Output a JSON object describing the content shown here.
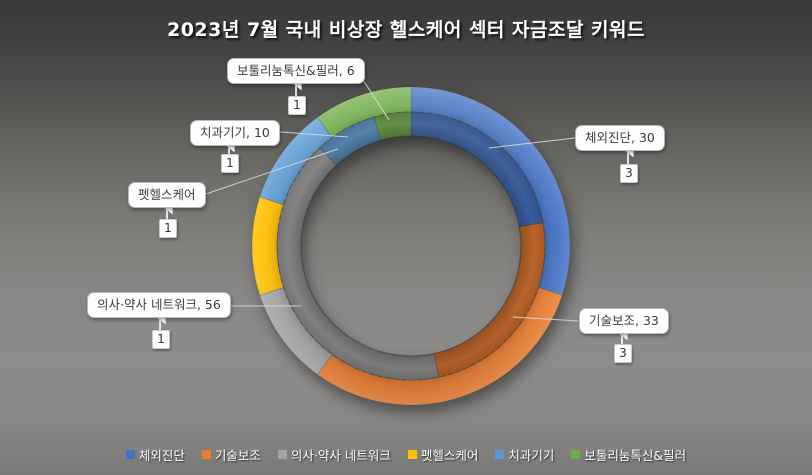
{
  "chart_data": {
    "type": "doughnut",
    "title": "2023년 7월 국내 비상장 헬스케어 섹터 자금조달 키워드",
    "categories": [
      "체외진단",
      "기술보조",
      "의사·약사 네트워크",
      "펫헬스케어",
      "치과기기",
      "보툴리눔톡신&필러"
    ],
    "series": [
      {
        "ring": "inner",
        "values": [
          30,
          33,
          56,
          0,
          10,
          6
        ]
      },
      {
        "ring": "outer",
        "values": [
          3,
          3,
          1,
          1,
          1,
          1
        ]
      }
    ],
    "colors": [
      "#4472C4",
      "#ED7D31",
      "#A5A5A5",
      "#FFC000",
      "#5B9BD5",
      "#70AD47"
    ],
    "callouts": [
      {
        "category": "체외진단",
        "label": "체외진단, 30",
        "count_label": "3"
      },
      {
        "category": "기술보조",
        "label": "기술보조, 33",
        "count_label": "3"
      },
      {
        "category": "의사·약사 네트워크",
        "label": "의사·약사 네트워크, 56",
        "count_label": "1"
      },
      {
        "category": "펫헬스케어",
        "label": "펫헬스케어",
        "count_label": "1"
      },
      {
        "category": "치과기기",
        "label": "치과기기, 10",
        "count_label": "1"
      },
      {
        "category": "보툴리눔톡신&필러",
        "label": "보툴리눔톡신&필러, 6",
        "count_label": "1"
      }
    ],
    "legend": {
      "position": "bottom",
      "items": [
        "체외진단",
        "기술보조",
        "의사·약사 네트워크",
        "펫헬스케어",
        "치과기기",
        "보툴리눔톡신&필러"
      ]
    },
    "background_color_top": "#3a3937",
    "background_color_mid": "#8e8c8a",
    "label_box_color": "#fdfdfd",
    "title_color": "#ffffff"
  }
}
